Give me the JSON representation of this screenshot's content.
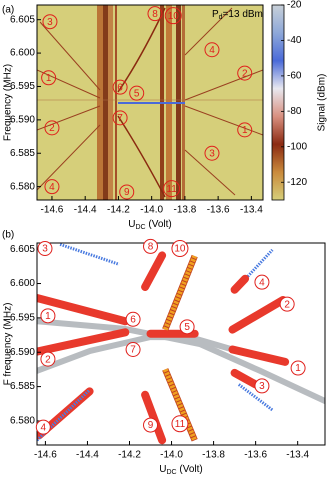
{
  "chart_data": [
    {
      "type": "heatmap",
      "panel_label": "(a)",
      "note": {
        "main": "P",
        "sub": "d",
        "rest": "=13 dBm"
      },
      "ylabel": "Frequency (MHz)",
      "xlabel": {
        "main": "U",
        "sub": "DC",
        "rest": " (Volt)"
      },
      "xlim": [
        -14.69,
        -13.33
      ],
      "ylim": [
        6.578,
        6.6072
      ],
      "xticks": [
        -14.6,
        -14.4,
        -14.2,
        {
          "value": -14,
          "label": "-14.0"
        },
        -13.8,
        -13.6,
        -13.4
      ],
      "yticks": [
        {
          "value": 6.58,
          "label": "6.580"
        },
        6.585,
        {
          "value": 6.59,
          "label": "6.590"
        },
        6.595,
        {
          "value": 6.6,
          "label": "6.600"
        },
        6.605
      ],
      "colorbar": {
        "label": "Signal (dBm)",
        "clim": [
          -130,
          -20
        ],
        "ticks": [
          -20,
          -40,
          -60,
          -80,
          -100,
          -120
        ],
        "colors": [
          "#d6cf7a",
          "#c98a3c",
          "#8b2a12",
          "#d89080",
          "#e8e8f0",
          "#4a6ad8",
          "#8ea8d8",
          "#c8d0d8"
        ]
      },
      "annotations": [
        {
          "text": "3",
          "x": -14.612,
          "y": 6.6047
        },
        {
          "text": "8",
          "x": -13.98,
          "y": 6.6059
        },
        {
          "text": "10",
          "x": -13.87,
          "y": 6.6056
        },
        {
          "text": "4",
          "x": -13.637,
          "y": 6.6005
        },
        {
          "text": "2",
          "x": -13.44,
          "y": 6.597
        },
        {
          "text": "1",
          "x": -14.62,
          "y": 6.5963
        },
        {
          "text": "6",
          "x": -14.19,
          "y": 6.5949
        },
        {
          "text": "5",
          "x": -14.09,
          "y": 6.594
        },
        {
          "text": "7",
          "x": -14.19,
          "y": 6.5903
        },
        {
          "text": "2",
          "x": -14.6,
          "y": 6.5888
        },
        {
          "text": "1",
          "x": -13.44,
          "y": 6.5885
        },
        {
          "text": "3",
          "x": -13.637,
          "y": 6.585
        },
        {
          "text": "4",
          "x": -14.6,
          "y": 6.58
        },
        {
          "text": "9",
          "x": -14.15,
          "y": 6.5792
        },
        {
          "text": "11",
          "x": -13.88,
          "y": 6.5797
        }
      ]
    },
    {
      "type": "line",
      "panel_label": "(b)",
      "ylabel": "F frequency (MHz)",
      "xlabel": {
        "main": "U",
        "sub": "DC",
        "rest": " (Volt)"
      },
      "xlim": [
        -14.64,
        -13.27
      ],
      "ylim": [
        6.5765,
        6.6059
      ],
      "xticks": [
        -14.6,
        -14.4,
        -14.2,
        {
          "value": -14,
          "label": "-14.0"
        },
        -13.8,
        -13.6,
        -13.4
      ],
      "yticks": [
        {
          "value": 6.58,
          "label": "6.580"
        },
        6.585,
        {
          "value": 6.59,
          "label": "6.590"
        },
        6.595,
        {
          "value": 6.6,
          "label": "6.600"
        },
        6.605
      ],
      "series": [
        {
          "color": "#b8bcc0",
          "marker": "none",
          "x": [
            -14.64,
            -14.221,
            -13.865,
            -13.579,
            -13.27
          ],
          "values": [
            6.5945,
            6.5934,
            6.5912,
            6.5873,
            6.5829
          ]
        },
        {
          "color": "#b8bcc0",
          "marker": "none",
          "x": [
            -14.64,
            -14.388,
            -14.102,
            -13.912,
            -13.722
          ],
          "values": [
            6.5873,
            6.5902,
            6.5922,
            6.5922,
            6.5905
          ]
        },
        {
          "color": "#4a7be0",
          "marker": "cross",
          "x": [
            -14.53,
            -14.25
          ],
          "values": [
            6.6057,
            6.6028
          ]
        },
        {
          "color": "#4a7be0",
          "marker": "cross",
          "x": [
            -13.69,
            -13.52
          ],
          "values": [
            6.5993,
            6.6049
          ]
        },
        {
          "color": "#4a7be0",
          "marker": "cross",
          "x": [
            -13.68,
            -13.52
          ],
          "values": [
            6.5853,
            6.5816
          ]
        },
        {
          "color": "#e8392c",
          "marker": "circle",
          "x": [
            -14.64,
            -14.22
          ],
          "values": [
            6.5979,
            6.5945
          ]
        },
        {
          "color": "#e8392c",
          "marker": "circle",
          "x": [
            -14.64,
            -14.22
          ],
          "values": [
            6.5901,
            6.5929
          ]
        },
        {
          "color": "#e8392c",
          "marker": "circle",
          "x": [
            -14.1,
            -13.89
          ],
          "values": [
            6.5927,
            6.5927
          ]
        },
        {
          "color": "#e8392c",
          "marker": "circle",
          "x": [
            -13.71,
            -13.47
          ],
          "values": [
            6.5933,
            6.5976
          ]
        },
        {
          "color": "#e8392c",
          "marker": "circle",
          "x": [
            -13.71,
            -13.46
          ],
          "values": [
            6.5904,
            6.5886
          ]
        },
        {
          "color": "#e8392c",
          "marker": "circle",
          "x": [
            -13.7,
            -13.6
          ],
          "values": [
            6.587,
            6.5853
          ]
        },
        {
          "color": "#e8392c",
          "marker": "circle",
          "x": [
            -14.63,
            -14.39
          ],
          "values": [
            6.5779,
            6.5843
          ]
        },
        {
          "color": "#e8392c",
          "marker": "circle",
          "x": [
            -14.126,
            -14.045
          ],
          "values": [
            6.5995,
            6.6041
          ]
        },
        {
          "color": "#e8392c",
          "marker": "circle",
          "x": [
            -14.126,
            -14.045
          ],
          "values": [
            6.5838,
            6.5772
          ]
        },
        {
          "color": "#e8392c",
          "marker": "circle",
          "x": [
            -13.7,
            -13.65
          ],
          "values": [
            6.5991,
            6.6007
          ]
        },
        {
          "color": "#4a7be0",
          "marker": "cross",
          "x": [
            -14.64,
            -14.39
          ],
          "values": [
            6.5772,
            6.5845
          ]
        },
        {
          "color": "#f0a020",
          "marker": "diamond",
          "x": [
            -14.03,
            -13.89
          ],
          "values": [
            6.5933,
            6.604
          ]
        },
        {
          "color": "#f0a020",
          "marker": "diamond",
          "x": [
            -14.03,
            -13.89
          ],
          "values": [
            6.5875,
            6.5772
          ]
        }
      ],
      "annotations": [
        {
          "text": "3",
          "x": -14.602,
          "y": 6.6051
        },
        {
          "text": "8",
          "x": -14.1,
          "y": 6.6054
        },
        {
          "text": "10",
          "x": -13.96,
          "y": 6.6051
        },
        {
          "text": "4",
          "x": -13.57,
          "y": 6.6002
        },
        {
          "text": "2",
          "x": -13.45,
          "y": 6.597
        },
        {
          "text": "1",
          "x": -14.588,
          "y": 6.5953
        },
        {
          "text": "6",
          "x": -14.183,
          "y": 6.5948
        },
        {
          "text": "5",
          "x": -13.926,
          "y": 6.5937
        },
        {
          "text": "7",
          "x": -14.183,
          "y": 6.5904
        },
        {
          "text": "2",
          "x": -14.588,
          "y": 6.589
        },
        {
          "text": "1",
          "x": -13.398,
          "y": 6.5877
        },
        {
          "text": "3",
          "x": -13.57,
          "y": 6.5851
        },
        {
          "text": "4",
          "x": -14.61,
          "y": 6.5791
        },
        {
          "text": "9",
          "x": -14.1,
          "y": 6.5794
        },
        {
          "text": "11",
          "x": -13.96,
          "y": 6.5796
        }
      ]
    }
  ]
}
